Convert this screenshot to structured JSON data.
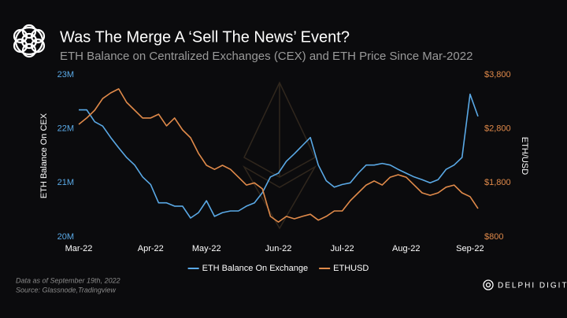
{
  "chart_data": {
    "type": "line",
    "title": "Was The Merge A ‘Sell The News’ Event?",
    "subtitle": "ETH Balance on Centralized Exchanges (CEX) and ETH Price Since Mar-2022",
    "y_label": "ETH Balance On CEX",
    "y2_label": "ETH/USD",
    "categories": [
      "Mar-22",
      null,
      null,
      null,
      null,
      null,
      null,
      null,
      null,
      "Apr-22",
      null,
      null,
      null,
      null,
      null,
      null,
      "May-22",
      null,
      null,
      null,
      null,
      null,
      null,
      null,
      null,
      "Jun-22",
      null,
      null,
      null,
      null,
      null,
      null,
      null,
      "Jul-22",
      null,
      null,
      null,
      null,
      null,
      null,
      null,
      "Aug-22",
      null,
      null,
      null,
      null,
      null,
      null,
      null,
      "Sep-22",
      null
    ],
    "ylim": [
      20,
      23
    ],
    "yticks": [
      {
        "value": 20,
        "label": "20M"
      },
      {
        "value": 21,
        "label": "21M"
      },
      {
        "value": 22,
        "label": "22M"
      },
      {
        "value": 23,
        "label": "23M"
      }
    ],
    "y2lim": [
      800,
      3800
    ],
    "y2ticks": [
      {
        "value": 800,
        "label": "$800"
      },
      {
        "value": 1800,
        "label": "$1,800"
      },
      {
        "value": 2800,
        "label": "$2,800"
      },
      {
        "value": 3800,
        "label": "$3,800"
      }
    ],
    "grid": false,
    "legend": "bottom",
    "series": [
      {
        "name": "ETH Balance On Exchange",
        "color": "#5aa9e6",
        "axis": "y",
        "values": [
          22.35,
          22.35,
          22.13,
          22.05,
          21.84,
          21.65,
          21.47,
          21.33,
          21.11,
          20.97,
          20.63,
          20.63,
          20.57,
          20.57,
          20.35,
          20.45,
          20.67,
          20.38,
          20.45,
          20.48,
          20.48,
          20.57,
          20.63,
          20.82,
          21.11,
          21.18,
          21.4,
          21.54,
          21.69,
          21.84,
          21.33,
          21.04,
          20.92,
          20.97,
          21.0,
          21.18,
          21.33,
          21.33,
          21.36,
          21.33,
          21.25,
          21.18,
          21.11,
          21.06,
          21.0,
          21.06,
          21.25,
          21.33,
          21.47,
          22.64,
          22.23
        ]
      },
      {
        "name": "ETHUSD",
        "color": "#e08a4a",
        "axis": "y2",
        "values": [
          2883,
          3000,
          3145,
          3360,
          3465,
          3540,
          3290,
          3145,
          3000,
          3000,
          3070,
          2855,
          3000,
          2780,
          2635,
          2345,
          2125,
          2050,
          2125,
          2050,
          1905,
          1760,
          1800,
          1690,
          1180,
          1075,
          1180,
          1135,
          1180,
          1220,
          1110,
          1180,
          1280,
          1280,
          1470,
          1615,
          1760,
          1835,
          1760,
          1905,
          1950,
          1905,
          1760,
          1615,
          1570,
          1615,
          1720,
          1760,
          1615,
          1545,
          1325
        ]
      }
    ]
  },
  "notes": [
    "Data as of September 19th, 2022",
    "Source: Glassnode,Tradingview"
  ],
  "brand": "DELPHI DIGITAL"
}
